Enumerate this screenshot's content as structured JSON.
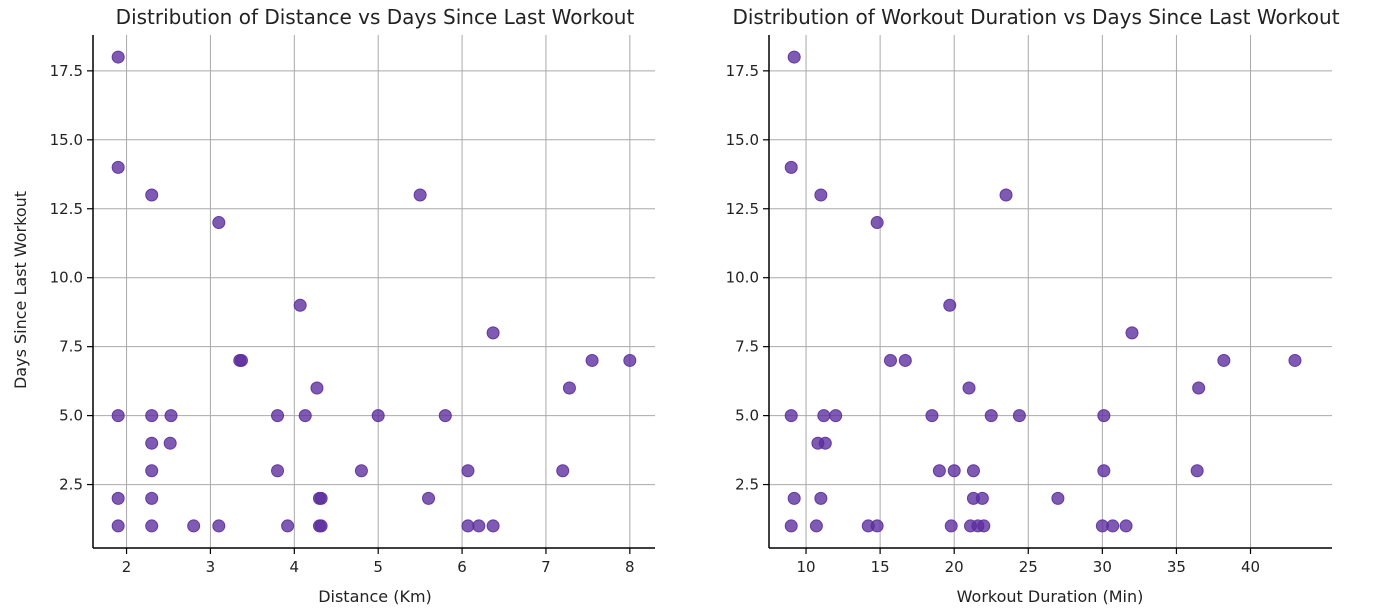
{
  "figure": {
    "colors": {
      "marker": "#5b2c9e",
      "grid": "#a9a9a9",
      "axis": "#000000"
    }
  },
  "chart_data": [
    {
      "type": "scatter",
      "title": "Distribution of Distance vs Days Since Last Workout",
      "xlabel": "Distance (Km)",
      "ylabel": "Days Since Last Workout",
      "xlim": [
        1.6,
        8.3
      ],
      "ylim": [
        0.2,
        18.8
      ],
      "xticks": [
        2,
        3,
        4,
        5,
        6,
        7,
        8
      ],
      "xtick_labels": [
        "2",
        "3",
        "4",
        "5",
        "6",
        "7",
        "8"
      ],
      "yticks": [
        2.5,
        5.0,
        7.5,
        10.0,
        12.5,
        15.0,
        17.5
      ],
      "ytick_labels": [
        "2.5",
        "5.0",
        "7.5",
        "10.0",
        "12.5",
        "15.0",
        "17.5"
      ],
      "grid": true,
      "points": [
        [
          1.9,
          18
        ],
        [
          1.9,
          14
        ],
        [
          1.9,
          5
        ],
        [
          1.9,
          2
        ],
        [
          1.9,
          1
        ],
        [
          2.3,
          13
        ],
        [
          2.3,
          5
        ],
        [
          2.3,
          4
        ],
        [
          2.3,
          3
        ],
        [
          2.3,
          2
        ],
        [
          2.3,
          1
        ],
        [
          2.53,
          5
        ],
        [
          2.52,
          4
        ],
        [
          2.8,
          1
        ],
        [
          3.1,
          12
        ],
        [
          3.1,
          1
        ],
        [
          3.35,
          7
        ],
        [
          3.37,
          7
        ],
        [
          3.8,
          5
        ],
        [
          3.8,
          3
        ],
        [
          3.92,
          1
        ],
        [
          4.07,
          9
        ],
        [
          4.13,
          5
        ],
        [
          4.27,
          6
        ],
        [
          4.3,
          2
        ],
        [
          4.32,
          2
        ],
        [
          4.3,
          1
        ],
        [
          4.32,
          1
        ],
        [
          4.8,
          3
        ],
        [
          5.0,
          5
        ],
        [
          5.5,
          13
        ],
        [
          5.6,
          2
        ],
        [
          5.8,
          5
        ],
        [
          6.07,
          3
        ],
        [
          6.07,
          1
        ],
        [
          6.2,
          1
        ],
        [
          6.37,
          8
        ],
        [
          6.37,
          1
        ],
        [
          7.2,
          3
        ],
        [
          7.28,
          6
        ],
        [
          7.55,
          7
        ],
        [
          8.0,
          7
        ]
      ]
    },
    {
      "type": "scatter",
      "title": "Distribution of Workout Duration vs Days Since Last Workout",
      "xlabel": "Workout Duration (Min)",
      "ylabel": "",
      "xlim": [
        7.5,
        45.5
      ],
      "ylim": [
        0.2,
        18.8
      ],
      "xticks": [
        10,
        15,
        20,
        25,
        30,
        35,
        40
      ],
      "xtick_labels": [
        "10",
        "15",
        "20",
        "25",
        "30",
        "35",
        "40"
      ],
      "yticks": [
        2.5,
        5.0,
        7.5,
        10.0,
        12.5,
        15.0,
        17.5
      ],
      "ytick_labels": [
        "2.5",
        "5.0",
        "7.5",
        "10.0",
        "12.5",
        "15.0",
        "17.5"
      ],
      "grid": true,
      "points": [
        [
          9.2,
          18
        ],
        [
          9.0,
          14
        ],
        [
          9.0,
          5
        ],
        [
          9.2,
          2
        ],
        [
          9.0,
          1
        ],
        [
          11.0,
          13
        ],
        [
          10.8,
          4
        ],
        [
          11.2,
          5
        ],
        [
          11.3,
          4
        ],
        [
          12.0,
          5
        ],
        [
          11.0,
          2
        ],
        [
          10.7,
          1
        ],
        [
          14.8,
          12
        ],
        [
          14.2,
          1
        ],
        [
          14.8,
          1
        ],
        [
          15.7,
          7
        ],
        [
          16.7,
          7
        ],
        [
          18.5,
          5
        ],
        [
          19.0,
          3
        ],
        [
          19.7,
          9
        ],
        [
          20.0,
          3
        ],
        [
          19.8,
          1
        ],
        [
          21.0,
          6
        ],
        [
          21.3,
          3
        ],
        [
          21.3,
          2
        ],
        [
          21.9,
          2
        ],
        [
          21.1,
          1
        ],
        [
          21.6,
          1
        ],
        [
          22.0,
          1
        ],
        [
          22.5,
          5
        ],
        [
          23.5,
          13
        ],
        [
          24.4,
          5
        ],
        [
          27.0,
          2
        ],
        [
          30.1,
          5
        ],
        [
          30.1,
          3
        ],
        [
          30.0,
          1
        ],
        [
          30.7,
          1
        ],
        [
          31.6,
          1
        ],
        [
          32.0,
          8
        ],
        [
          36.4,
          3
        ],
        [
          36.5,
          6
        ],
        [
          38.2,
          7
        ],
        [
          43.0,
          7
        ]
      ]
    }
  ]
}
